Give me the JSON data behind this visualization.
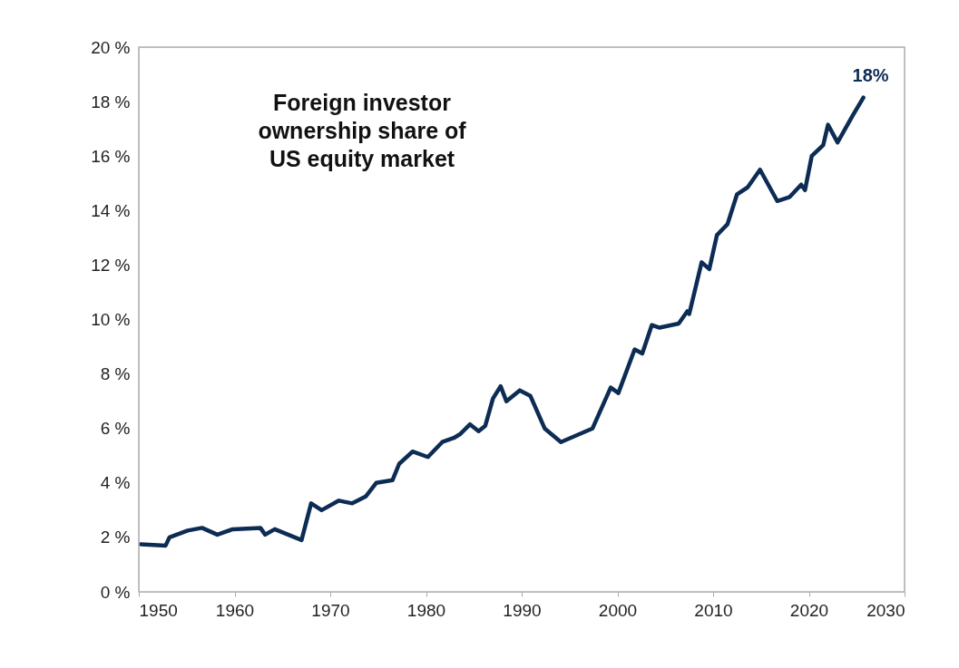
{
  "chart_data": {
    "type": "line",
    "title": "Foreign investor ownership share of US equity market",
    "x": [
      1950.2,
      1952.8,
      1953.2,
      1955.1,
      1956.6,
      1958.2,
      1959.8,
      1962.7,
      1963.2,
      1964.2,
      1967,
      1968,
      1969.1,
      1970.9,
      1972.3,
      1973.7,
      1974.8,
      1976.5,
      1977.2,
      1978.6,
      1980.2,
      1981.7,
      1982.9,
      1983.6,
      1984.6,
      1985.5,
      1986.2,
      1987,
      1987.8,
      1988.4,
      1989.8,
      1990.9,
      1992.4,
      1994.1,
      1996.4,
      1997.4,
      1999.3,
      2000.1,
      2001.8,
      2002.6,
      2003.6,
      2004.4,
      2006.4,
      2007.3,
      2007.5,
      2008.8,
      2009.6,
      2010.4,
      2011.5,
      2012.5,
      2013.6,
      2014.9,
      2016.7,
      2018,
      2019.2,
      2019.6,
      2020.3,
      2021.5,
      2022,
      2023,
      2024.6,
      2025.7
    ],
    "series": [
      {
        "color": "#0d2c54",
        "values": [
          1.75,
          1.7,
          2.0,
          2.25,
          2.35,
          2.1,
          2.3,
          2.35,
          2.1,
          2.3,
          1.9,
          3.25,
          3.0,
          3.35,
          3.25,
          3.5,
          4.0,
          4.1,
          4.7,
          5.15,
          4.95,
          5.5,
          5.65,
          5.8,
          6.15,
          5.9,
          6.1,
          7.1,
          7.55,
          7.0,
          7.4,
          7.2,
          6.0,
          5.5,
          5.85,
          6.0,
          7.5,
          7.3,
          8.9,
          8.75,
          9.8,
          9.7,
          9.85,
          10.3,
          10.2,
          12.1,
          11.85,
          13.1,
          13.5,
          14.6,
          14.85,
          15.5,
          14.35,
          14.5,
          14.95,
          14.75,
          16.0,
          16.4,
          17.15,
          16.5,
          17.5,
          18.15
        ]
      }
    ],
    "xlim": [
      1950,
      2030
    ],
    "xticks": [
      1950,
      1960,
      1970,
      1980,
      1990,
      2000,
      2010,
      2020,
      2030
    ],
    "ylim": [
      0,
      20
    ],
    "yticks": [
      {
        "value": 0,
        "label": "0 %"
      },
      {
        "value": 2,
        "label": "2 %"
      },
      {
        "value": 4,
        "label": "4 %"
      },
      {
        "value": 6,
        "label": "6 %"
      },
      {
        "value": 8,
        "label": "8 %"
      },
      {
        "value": 10,
        "label": "10 %"
      },
      {
        "value": 12,
        "label": "12 %"
      },
      {
        "value": 14,
        "label": "14 %"
      },
      {
        "value": 16,
        "label": "16 %"
      },
      {
        "value": 18,
        "label": "18 %"
      },
      {
        "value": 20,
        "label": "20 %"
      }
    ],
    "annotations": [
      {
        "text": "18%",
        "x": 2025.7,
        "y": 18.15
      }
    ],
    "grid": false,
    "legend": false,
    "line_style": "solid"
  }
}
